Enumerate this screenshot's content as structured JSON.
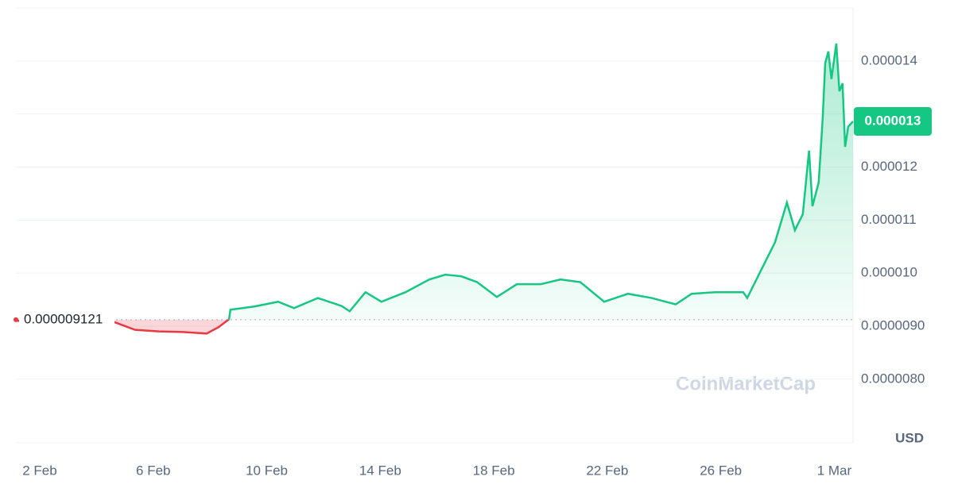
{
  "chart_data": {
    "type": "line",
    "x": [
      1.16,
      4.66,
      5.36,
      6.2,
      7.04,
      7.88,
      8.3,
      8.67,
      8.72,
      9.56,
      10.4,
      10.96,
      11.8,
      12.64,
      12.92,
      13.48,
      14.04,
      14.89,
      15.73,
      16.29,
      16.85,
      17.41,
      18.11,
      18.81,
      19.65,
      20.35,
      21.05,
      21.89,
      22.73,
      23.57,
      24.41,
      24.97,
      25.81,
      26.79,
      26.93,
      27.35,
      27.91,
      28.33,
      28.61,
      28.89,
      29.11,
      29.23,
      29.45,
      29.59,
      29.68,
      29.79,
      29.9,
      30.07,
      30.18,
      30.29,
      30.38,
      30.49,
      30.66
    ],
    "series": [
      {
        "color": "#16c784",
        "color_below": "#ea3943",
        "values": [
          9.1e-06,
          9.07e-06,
          8.93e-06,
          8.9e-06,
          8.89e-06,
          8.86e-06,
          8.98e-06,
          9.13e-06,
          9.31e-06,
          9.37e-06,
          9.46e-06,
          9.34e-06,
          9.53e-06,
          9.38e-06,
          9.28e-06,
          9.64e-06,
          9.46e-06,
          9.64e-06,
          9.88e-06,
          9.97e-06,
          9.94e-06,
          9.83e-06,
          9.55e-06,
          9.79e-06,
          9.79e-06,
          9.88e-06,
          9.83e-06,
          9.46e-06,
          9.61e-06,
          9.53e-06,
          9.41e-06,
          9.61e-06,
          9.64e-06,
          9.64e-06,
          9.53e-06,
          9.98e-06,
          1.058e-05,
          1.133e-05,
          1.081e-05,
          1.111e-05,
          1.231e-05,
          1.126e-05,
          1.171e-05,
          1.291e-05,
          1.396e-05,
          1.418e-05,
          1.366e-05,
          1.433e-05,
          1.343e-05,
          1.358e-05,
          1.238e-05,
          1.276e-05,
          1.286e-05
        ]
      }
    ],
    "baseline": {
      "value": 9.121e-06,
      "label": "0.000009121"
    },
    "current_price": {
      "value": 1.286e-05,
      "label": "0.000013"
    },
    "xlim": [
      1.16,
      30.66
    ],
    "xticks": [
      {
        "value": 2,
        "label": "2 Feb"
      },
      {
        "value": 6,
        "label": "6 Feb"
      },
      {
        "value": 10,
        "label": "10 Feb"
      },
      {
        "value": 14,
        "label": "14 Feb"
      },
      {
        "value": 18,
        "label": "18 Feb"
      },
      {
        "value": 22,
        "label": "22 Feb"
      },
      {
        "value": 26,
        "label": "26 Feb"
      },
      {
        "value": 30,
        "label": "1 Mar"
      }
    ],
    "ylim": [
      6.8e-06,
      1.5e-05
    ],
    "yticks": [
      {
        "value": 8e-06,
        "label": "0.0000080"
      },
      {
        "value": 9e-06,
        "label": "0.0000090"
      },
      {
        "value": 1e-05,
        "label": "0.000010"
      },
      {
        "value": 1.1e-05,
        "label": "0.000011"
      },
      {
        "value": 1.2e-05,
        "label": "0.000012"
      },
      {
        "value": 1.3e-05,
        "label": "0.000013"
      },
      {
        "value": 1.4e-05,
        "label": "0.000014"
      }
    ],
    "y_unit": "USD",
    "watermark": "CoinMarketCap",
    "grid": true
  }
}
